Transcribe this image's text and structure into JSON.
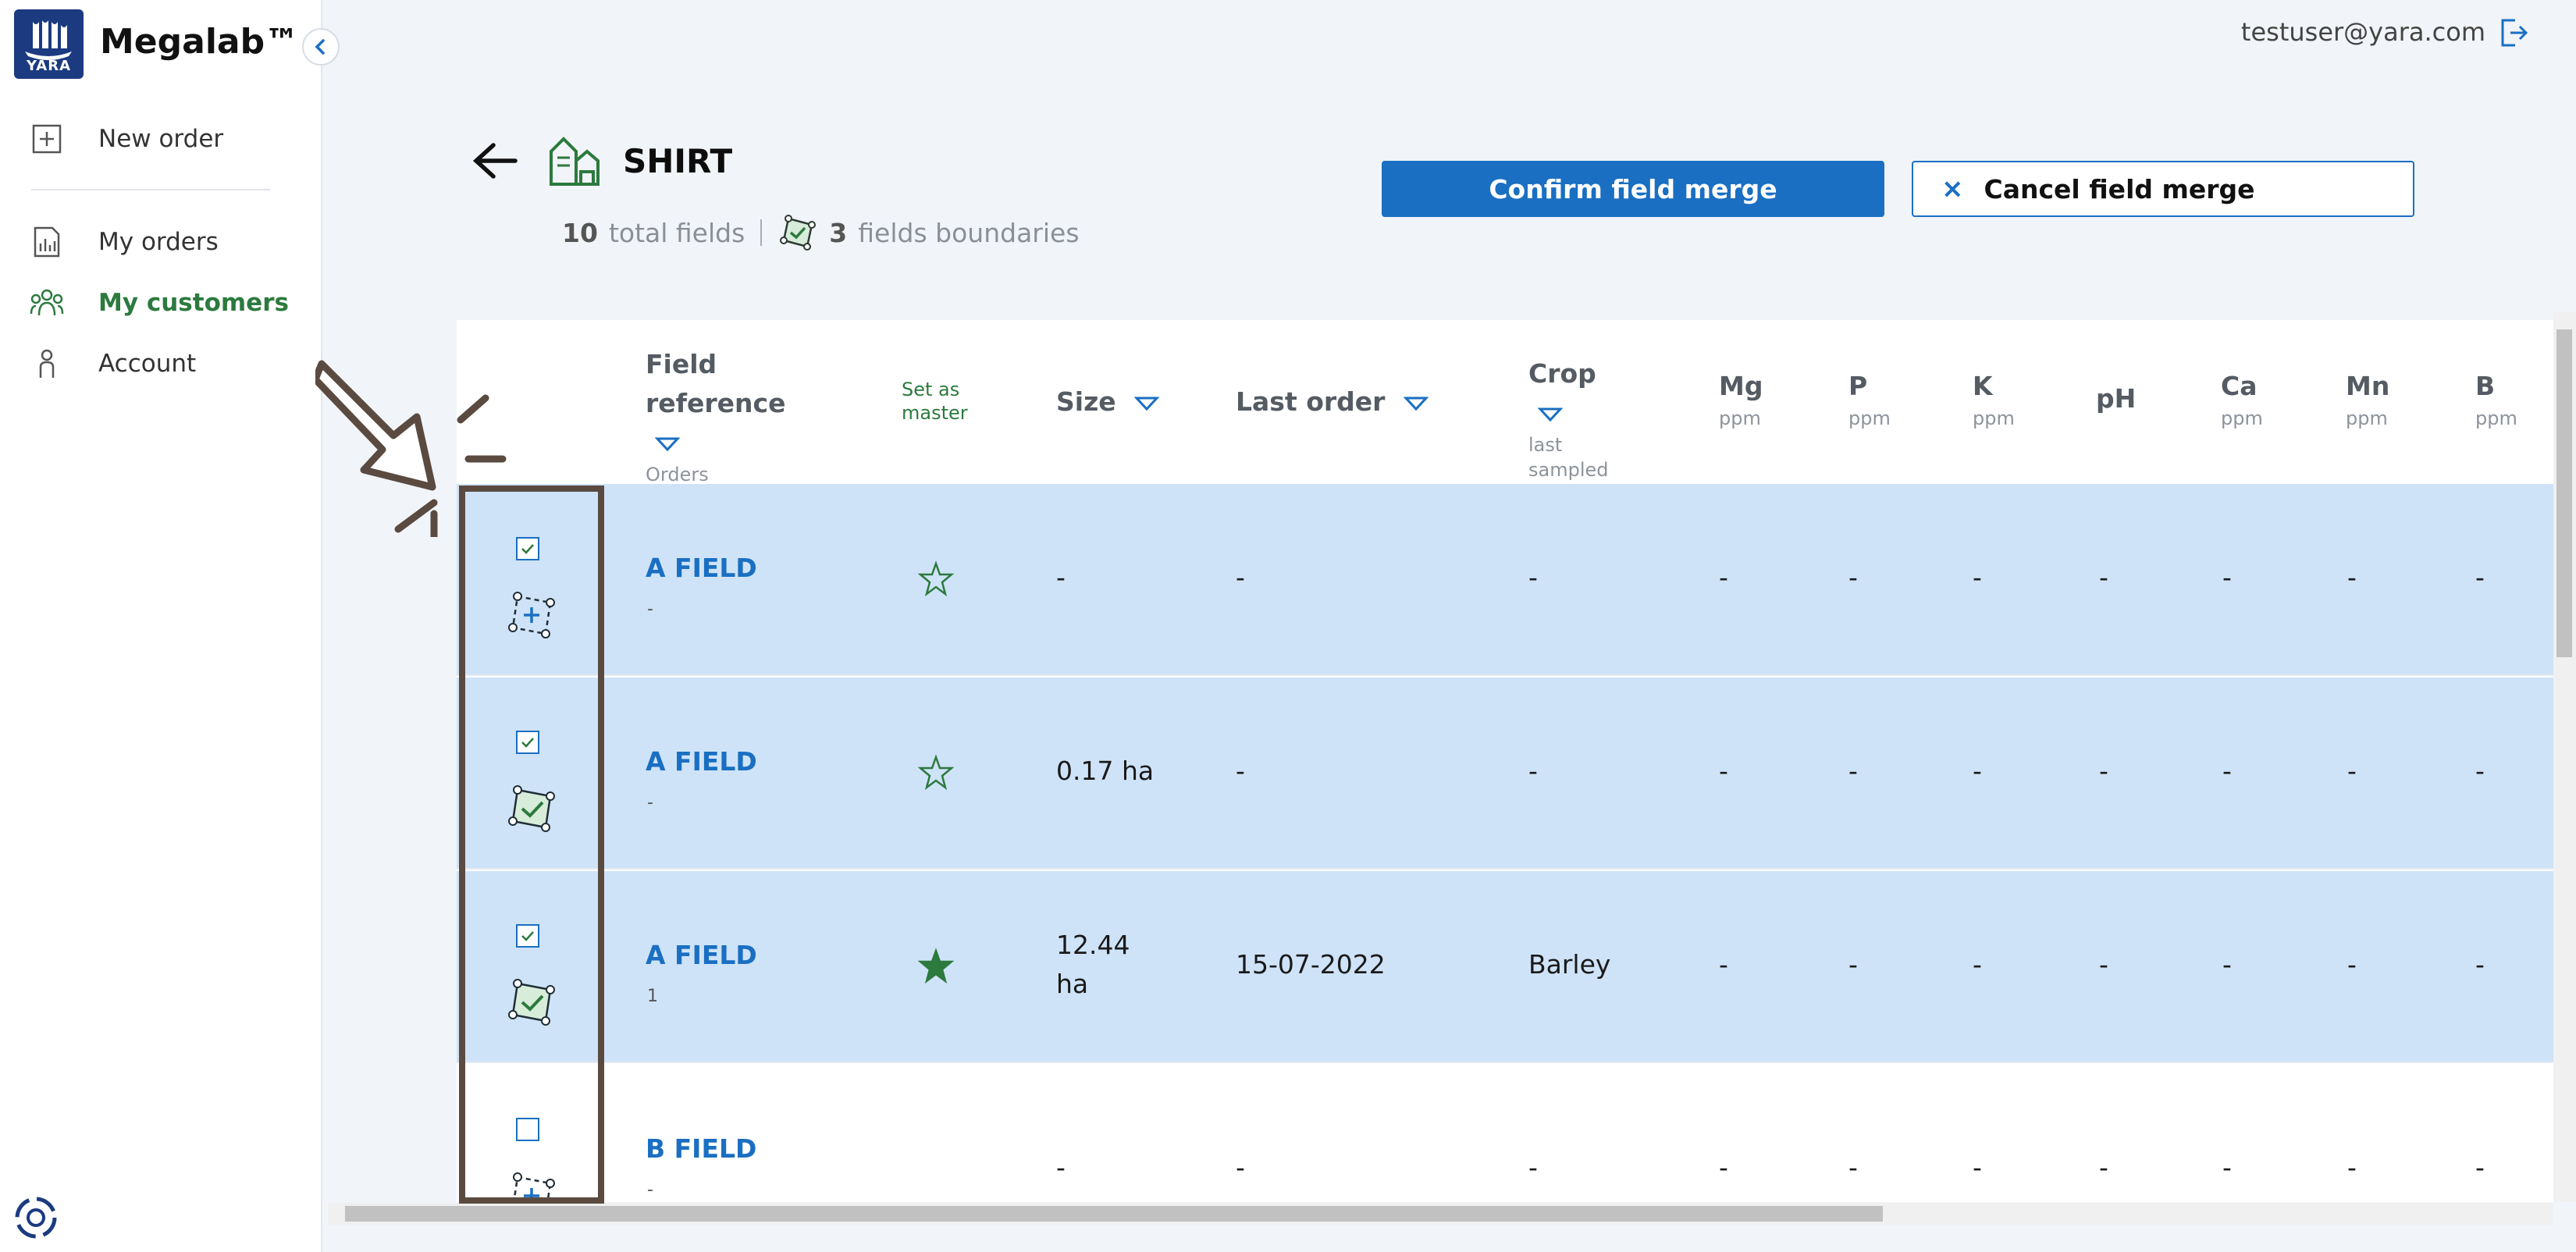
{
  "app": {
    "brand": "Megalab™",
    "logo_text": "YARA"
  },
  "sidebar": {
    "items": [
      {
        "label": "New order",
        "icon": "plus-square-icon",
        "active": false
      },
      {
        "label": "My orders",
        "icon": "chart-document-icon",
        "active": false
      },
      {
        "label": "My customers",
        "icon": "people-group-icon",
        "active": true
      },
      {
        "label": "Account",
        "icon": "person-icon",
        "active": false
      }
    ]
  },
  "user": {
    "email": "testuser@yara.com"
  },
  "header": {
    "farm_name": "SHIRT",
    "total_fields_count": "10",
    "total_fields_label": "total fields",
    "boundaries_count": "3",
    "boundaries_label": "fields boundaries",
    "confirm_label": "Confirm field merge",
    "cancel_label": "Cancel field merge",
    "cancel_icon": "×"
  },
  "table": {
    "headers": {
      "field_reference": "Field reference",
      "field_reference_sub": "Orders",
      "set_as_master": "Set as master",
      "size": "Size",
      "last_order": "Last order",
      "crop": "Crop",
      "crop_sub": "last sampled",
      "mg": "Mg",
      "p": "P",
      "k": "K",
      "ph": "pH",
      "ca": "Ca",
      "mn": "Mn",
      "b": "B",
      "unit": "ppm"
    },
    "rows": [
      {
        "checked": true,
        "boundary": "add",
        "name": "A FIELD",
        "orders": "-",
        "master": false,
        "size": "-",
        "last_order": "-",
        "crop": "-",
        "mg": "-",
        "p": "-",
        "k": "-",
        "ph": "-",
        "ca": "-",
        "mn": "-",
        "b": "-"
      },
      {
        "checked": true,
        "boundary": "done",
        "name": "A FIELD",
        "orders": "-",
        "master": false,
        "size": "0.17 ha",
        "last_order": "-",
        "crop": "-",
        "mg": "-",
        "p": "-",
        "k": "-",
        "ph": "-",
        "ca": "-",
        "mn": "-",
        "b": "-"
      },
      {
        "checked": true,
        "boundary": "done",
        "name": "A FIELD",
        "orders": "1",
        "master": true,
        "size_line1": "12.44",
        "size_line2": "ha",
        "last_order": "15-07-2022",
        "crop": "Barley",
        "mg": "-",
        "p": "-",
        "k": "-",
        "ph": "-",
        "ca": "-",
        "mn": "-",
        "b": "-"
      },
      {
        "checked": false,
        "boundary": "add",
        "name": "B FIELD",
        "orders": "-",
        "master": false,
        "size": "-",
        "last_order": "-",
        "crop": "-",
        "mg": "-",
        "p": "-",
        "k": "-",
        "ph": "-",
        "ca": "-",
        "mn": "-",
        "b": "-"
      }
    ]
  },
  "colors": {
    "primary": "#1a6fc2",
    "selected_row": "#cfe3f8",
    "accent_green": "#2c7a3e",
    "logo_blue": "#1b3a80"
  }
}
